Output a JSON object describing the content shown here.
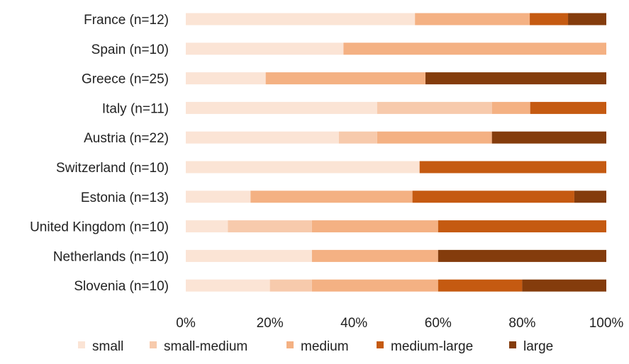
{
  "chart_data": {
    "type": "bar",
    "orientation": "horizontal",
    "stacked": "percent",
    "title": "",
    "xlabel": "",
    "ylabel": "",
    "xlim": [
      0,
      100
    ],
    "x_ticks": [
      "0%",
      "20%",
      "40%",
      "60%",
      "80%",
      "100%"
    ],
    "grid": false,
    "legend_position": "bottom",
    "categories": [
      "France (n=12)",
      "Spain (n=10)",
      "Greece  (n=25)",
      "Italy  (n=11)",
      "Austria  (n=22)",
      "Switzerland  (n=10)",
      "Estonia  (n=13)",
      "United Kingdom (n=10)",
      "Netherlands (n=10)",
      "Slovenia (n=10)"
    ],
    "series": [
      {
        "name": "small",
        "color": "#fbe4d5",
        "values": [
          54.5,
          37.5,
          19,
          45.5,
          36.4,
          55.6,
          15.4,
          10,
          30,
          20
        ]
      },
      {
        "name": "small-medium",
        "color": "#f7caac",
        "values": [
          0,
          0,
          0,
          27.3,
          9.1,
          0,
          0,
          20,
          0,
          10
        ]
      },
      {
        "name": "medium",
        "color": "#f4b183",
        "values": [
          27.3,
          62.5,
          38,
          9.1,
          27.3,
          0,
          38.5,
          30,
          30,
          30
        ]
      },
      {
        "name": "medium-large",
        "color": "#c55a11",
        "values": [
          9.1,
          0,
          0,
          18.1,
          0,
          44.4,
          38.5,
          40,
          0,
          20
        ]
      },
      {
        "name": "large",
        "color": "#843c0c",
        "values": [
          9.1,
          0,
          43,
          0,
          27.2,
          0,
          7.6,
          0,
          40,
          20
        ]
      }
    ]
  }
}
